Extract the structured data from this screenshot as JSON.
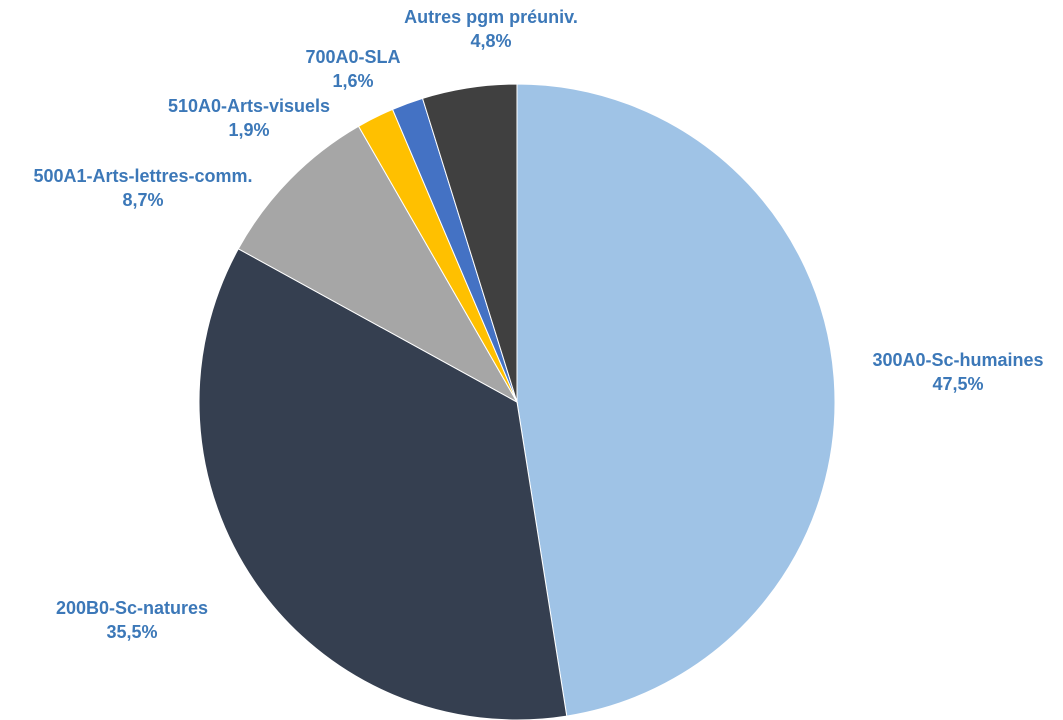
{
  "chart_data": {
    "type": "pie",
    "title": "",
    "label_color": "#3c78b8",
    "slices": [
      {
        "label": "300A0-Sc-humaines",
        "value": 47.5,
        "value_label": "47,5%",
        "color": "#9fc3e6"
      },
      {
        "label": "200B0-Sc-natures",
        "value": 35.5,
        "value_label": "35,5%",
        "color": "#353f50"
      },
      {
        "label": "500A1-Arts-lettres-comm.",
        "value": 8.7,
        "value_label": "8,7%",
        "color": "#a6a6a6"
      },
      {
        "label": "510A0-Arts-visuels",
        "value": 1.9,
        "value_label": "1,9%",
        "color": "#ffc000"
      },
      {
        "label": "700A0-SLA",
        "value": 1.6,
        "value_label": "1,6%",
        "color": "#4472c4"
      },
      {
        "label": "Autres pgm préuniv.",
        "value": 4.8,
        "value_label": "4,8%",
        "color": "#404040"
      }
    ]
  }
}
